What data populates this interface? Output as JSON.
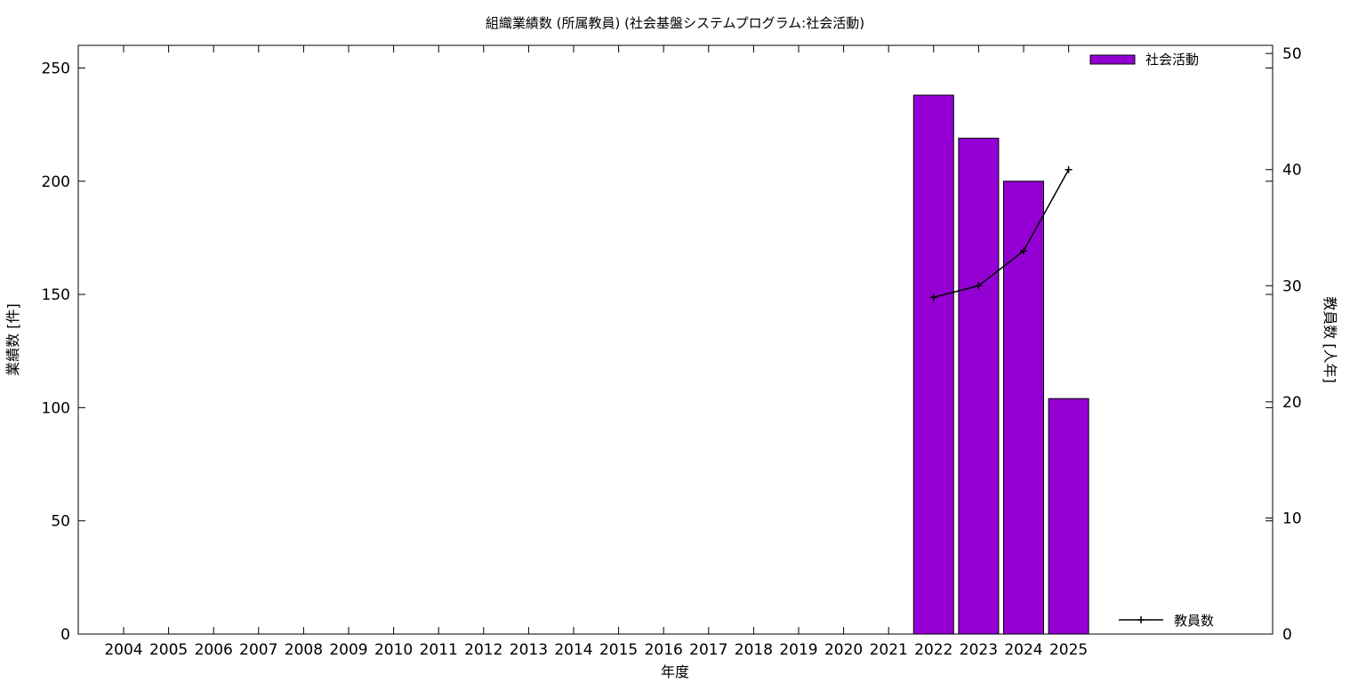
{
  "chart_data": {
    "type": "bar",
    "title": "組織業績数 (所属教員) (社会基盤システムプログラム:社会活動)",
    "xlabel": "年度",
    "ylabel": "業績数 [件]",
    "y2label": "教員数 [人年]",
    "categories": [
      "2004",
      "2005",
      "2006",
      "2007",
      "2008",
      "2009",
      "2010",
      "2011",
      "2012",
      "2013",
      "2014",
      "2015",
      "2016",
      "2017",
      "2018",
      "2019",
      "2020",
      "2021",
      "2022",
      "2023",
      "2024",
      "2025"
    ],
    "ylim": [
      0,
      260
    ],
    "y2lim": [
      0,
      50.7
    ],
    "yticks": [
      "0",
      "50",
      "100",
      "150",
      "200",
      "250"
    ],
    "y2ticks": [
      "0",
      "10",
      "20",
      "30",
      "40",
      "50"
    ],
    "grid": false,
    "legend_position": "top-right",
    "series": [
      {
        "name": "社会活動",
        "kind": "bar",
        "axis": "y",
        "color": "#9400d3",
        "values": [
          0,
          0,
          0,
          0,
          0,
          0,
          0,
          0,
          0,
          0,
          0,
          0,
          0,
          0,
          0,
          0,
          0,
          0,
          238,
          219,
          200,
          104
        ]
      },
      {
        "name": "教員数",
        "kind": "line",
        "axis": "y2",
        "color": "#000000",
        "values": [
          null,
          null,
          null,
          null,
          null,
          null,
          null,
          null,
          null,
          null,
          null,
          null,
          null,
          null,
          null,
          null,
          null,
          null,
          29,
          30,
          33,
          40
        ]
      }
    ]
  }
}
